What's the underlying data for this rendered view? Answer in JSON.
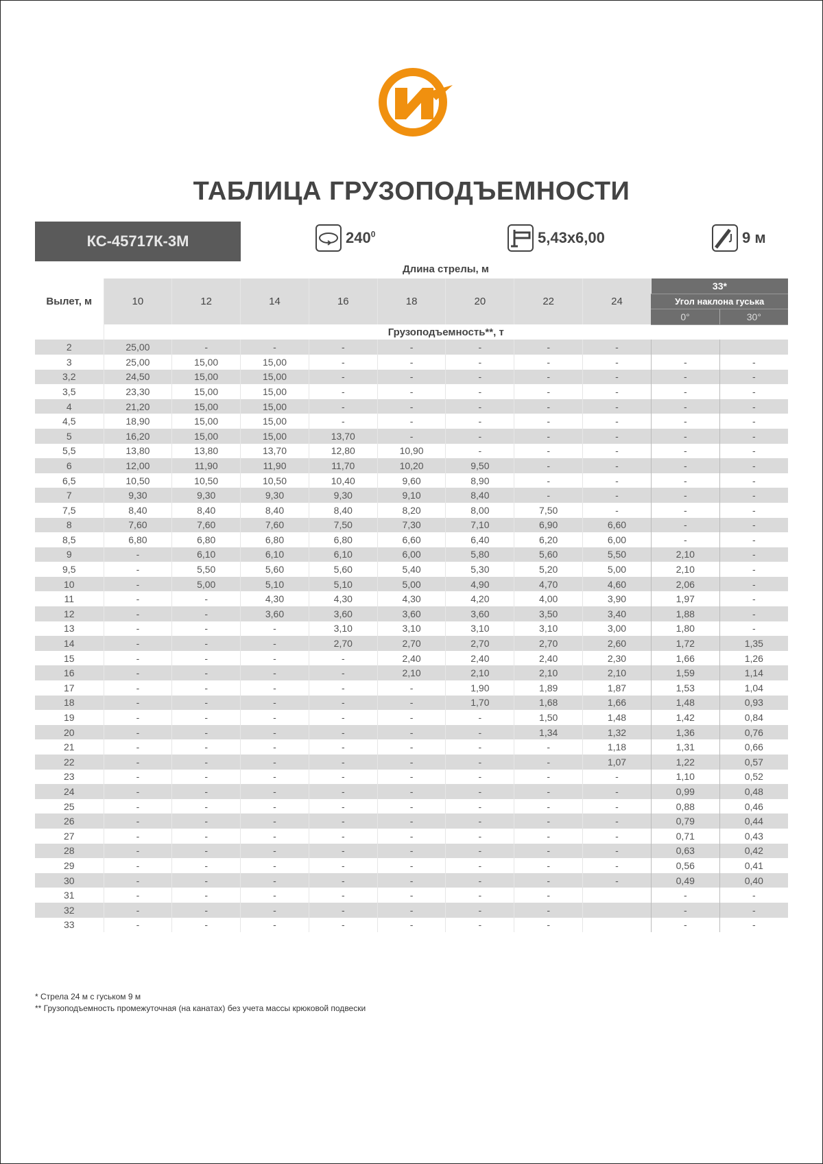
{
  "logo": {
    "text": "И",
    "color": "#f0900f"
  },
  "title": "ТАБЛИЦА ГРУЗОПОДЪЕМНОСТИ",
  "model": "КС-45717К-3М",
  "specs": {
    "rotation": {
      "icon": "rotation-icon",
      "value": "240",
      "sup": "0"
    },
    "outriggers": {
      "icon": "outrigger-icon",
      "value": "5,43х6,00"
    },
    "jib": {
      "icon": "jib-hook-icon",
      "value": "9 м"
    }
  },
  "table": {
    "boom_caption": "Длина стрелы, м",
    "radius_header": "Вылет, м",
    "boom_lengths": [
      "10",
      "12",
      "14",
      "16",
      "18",
      "20",
      "22",
      "24"
    ],
    "jib_header": "33*",
    "jib_angle_header": "Угол наклона гуська",
    "jib_angles": [
      "0°",
      "30°"
    ],
    "capacity_caption": "Грузоподъемность**, т",
    "rows": [
      [
        "2",
        "25,00",
        "-",
        "-",
        "-",
        "-",
        "-",
        "-",
        "-",
        "",
        ""
      ],
      [
        "3",
        "25,00",
        "15,00",
        "15,00",
        "-",
        "-",
        "-",
        "-",
        "-",
        "-",
        "-"
      ],
      [
        "3,2",
        "24,50",
        "15,00",
        "15,00",
        "-",
        "-",
        "-",
        "-",
        "-",
        "-",
        "-"
      ],
      [
        "3,5",
        "23,30",
        "15,00",
        "15,00",
        "-",
        "-",
        "-",
        "-",
        "-",
        "-",
        "-"
      ],
      [
        "4",
        "21,20",
        "15,00",
        "15,00",
        "-",
        "-",
        "-",
        "-",
        "-",
        "-",
        "-"
      ],
      [
        "4,5",
        "18,90",
        "15,00",
        "15,00",
        "-",
        "-",
        "-",
        "-",
        "-",
        "-",
        "-"
      ],
      [
        "5",
        "16,20",
        "15,00",
        "15,00",
        "13,70",
        "-",
        "-",
        "-",
        "-",
        "-",
        "-"
      ],
      [
        "5,5",
        "13,80",
        "13,80",
        "13,70",
        "12,80",
        "10,90",
        "-",
        "-",
        "-",
        "-",
        "-"
      ],
      [
        "6",
        "12,00",
        "11,90",
        "11,90",
        "11,70",
        "10,20",
        "9,50",
        "-",
        "-",
        "-",
        "-"
      ],
      [
        "6,5",
        "10,50",
        "10,50",
        "10,50",
        "10,40",
        "9,60",
        "8,90",
        "-",
        "-",
        "-",
        "-"
      ],
      [
        "7",
        "9,30",
        "9,30",
        "9,30",
        "9,30",
        "9,10",
        "8,40",
        "-",
        "-",
        "-",
        "-"
      ],
      [
        "7,5",
        "8,40",
        "8,40",
        "8,40",
        "8,40",
        "8,20",
        "8,00",
        "7,50",
        "-",
        "-",
        "-"
      ],
      [
        "8",
        "7,60",
        "7,60",
        "7,60",
        "7,50",
        "7,30",
        "7,10",
        "6,90",
        "6,60",
        "-",
        "-"
      ],
      [
        "8,5",
        "6,80",
        "6,80",
        "6,80",
        "6,80",
        "6,60",
        "6,40",
        "6,20",
        "6,00",
        "-",
        "-"
      ],
      [
        "9",
        "-",
        "6,10",
        "6,10",
        "6,10",
        "6,00",
        "5,80",
        "5,60",
        "5,50",
        "2,10",
        "-"
      ],
      [
        "9,5",
        "-",
        "5,50",
        "5,60",
        "5,60",
        "5,40",
        "5,30",
        "5,20",
        "5,00",
        "2,10",
        "-"
      ],
      [
        "10",
        "-",
        "5,00",
        "5,10",
        "5,10",
        "5,00",
        "4,90",
        "4,70",
        "4,60",
        "2,06",
        "-"
      ],
      [
        "11",
        "-",
        "-",
        "4,30",
        "4,30",
        "4,30",
        "4,20",
        "4,00",
        "3,90",
        "1,97",
        "-"
      ],
      [
        "12",
        "-",
        "-",
        "3,60",
        "3,60",
        "3,60",
        "3,60",
        "3,50",
        "3,40",
        "1,88",
        "-"
      ],
      [
        "13",
        "-",
        "-",
        "-",
        "3,10",
        "3,10",
        "3,10",
        "3,10",
        "3,00",
        "1,80",
        "-"
      ],
      [
        "14",
        "-",
        "-",
        "-",
        "2,70",
        "2,70",
        "2,70",
        "2,70",
        "2,60",
        "1,72",
        "1,35"
      ],
      [
        "15",
        "-",
        "-",
        "-",
        "-",
        "2,40",
        "2,40",
        "2,40",
        "2,30",
        "1,66",
        "1,26"
      ],
      [
        "16",
        "-",
        "-",
        "-",
        "-",
        "2,10",
        "2,10",
        "2,10",
        "2,10",
        "1,59",
        "1,14"
      ],
      [
        "17",
        "-",
        "-",
        "-",
        "-",
        "-",
        "1,90",
        "1,89",
        "1,87",
        "1,53",
        "1,04"
      ],
      [
        "18",
        "-",
        "-",
        "-",
        "-",
        "-",
        "1,70",
        "1,68",
        "1,66",
        "1,48",
        "0,93"
      ],
      [
        "19",
        "-",
        "-",
        "-",
        "-",
        "-",
        "-",
        "1,50",
        "1,48",
        "1,42",
        "0,84"
      ],
      [
        "20",
        "-",
        "-",
        "-",
        "-",
        "-",
        "-",
        "1,34",
        "1,32",
        "1,36",
        "0,76"
      ],
      [
        "21",
        "-",
        "-",
        "-",
        "-",
        "-",
        "-",
        "-",
        "1,18",
        "1,31",
        "0,66"
      ],
      [
        "22",
        "-",
        "-",
        "-",
        "-",
        "-",
        "-",
        "-",
        "1,07",
        "1,22",
        "0,57"
      ],
      [
        "23",
        "-",
        "-",
        "-",
        "-",
        "-",
        "-",
        "-",
        "-",
        "1,10",
        "0,52"
      ],
      [
        "24",
        "-",
        "-",
        "-",
        "-",
        "-",
        "-",
        "-",
        "-",
        "0,99",
        "0,48"
      ],
      [
        "25",
        "-",
        "-",
        "-",
        "-",
        "-",
        "-",
        "-",
        "-",
        "0,88",
        "0,46"
      ],
      [
        "26",
        "-",
        "-",
        "-",
        "-",
        "-",
        "-",
        "-",
        "-",
        "0,79",
        "0,44"
      ],
      [
        "27",
        "-",
        "-",
        "-",
        "-",
        "-",
        "-",
        "-",
        "-",
        "0,71",
        "0,43"
      ],
      [
        "28",
        "-",
        "-",
        "-",
        "-",
        "-",
        "-",
        "-",
        "-",
        "0,63",
        "0,42"
      ],
      [
        "29",
        "-",
        "-",
        "-",
        "-",
        "-",
        "-",
        "-",
        "-",
        "0,56",
        "0,41"
      ],
      [
        "30",
        "-",
        "-",
        "-",
        "-",
        "-",
        "-",
        "-",
        "-",
        "0,49",
        "0,40"
      ],
      [
        "31",
        "-",
        "-",
        "-",
        "-",
        "-",
        "-",
        "-",
        "",
        "-",
        "-"
      ],
      [
        "32",
        "-",
        "-",
        "-",
        "-",
        "-",
        "-",
        "-",
        "",
        "-",
        "-"
      ],
      [
        "33",
        "-",
        "-",
        "-",
        "-",
        "-",
        "-",
        "-",
        "",
        "-",
        "-"
      ]
    ]
  },
  "footnotes": [
    "* Стрела 24 м с гуськом 9 м",
    "** Грузоподъемность промежуточная (на канатах) без учета массы крюковой подвески"
  ]
}
